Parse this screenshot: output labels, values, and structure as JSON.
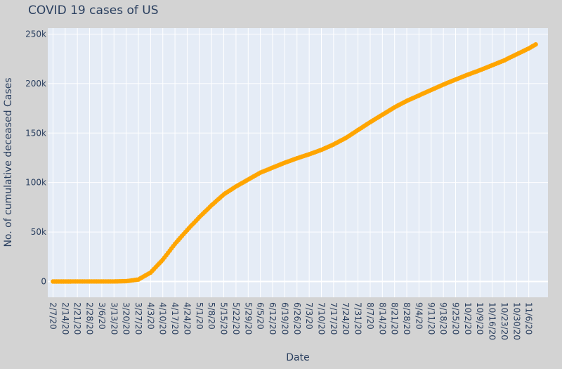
{
  "chart_data": {
    "type": "scatter",
    "mode": "lines+markers",
    "title": "COVID 19 cases of US",
    "xlabel": "Date",
    "ylabel": "No. of cumulative deceased Cases",
    "x_start": "2/7/20",
    "x_end": "11/10/20",
    "xlim": [
      "2/4/20",
      "11/17/20"
    ],
    "ylim": [
      -16000,
      256000
    ],
    "y_ticks": [
      0,
      50000,
      100000,
      150000,
      200000,
      250000
    ],
    "y_tick_labels": [
      "0",
      "50k",
      "100k",
      "150k",
      "200k",
      "250k"
    ],
    "x_tick_labels": [
      "2/7/20",
      "2/14/20",
      "2/21/20",
      "2/28/20",
      "3/6/20",
      "3/13/20",
      "3/20/20",
      "3/27/20",
      "4/3/20",
      "4/10/20",
      "4/17/20",
      "4/24/20",
      "5/1/20",
      "5/8/20",
      "5/15/20",
      "5/22/20",
      "5/29/20",
      "6/5/20",
      "6/12/20",
      "6/19/20",
      "6/26/20",
      "7/3/20",
      "7/10/20",
      "7/17/20",
      "7/24/20",
      "7/31/20",
      "8/7/20",
      "8/14/20",
      "8/21/20",
      "8/28/20",
      "9/4/20",
      "9/11/20",
      "9/18/20",
      "9/25/20",
      "10/2/20",
      "10/9/20",
      "10/16/20",
      "10/23/20",
      "10/30/20",
      "11/6/20"
    ],
    "key_points": [
      {
        "x": "2/7/20",
        "y": 0
      },
      {
        "x": "3/13/20",
        "y": 50
      },
      {
        "x": "3/20/20",
        "y": 300
      },
      {
        "x": "3/27/20",
        "y": 2000
      },
      {
        "x": "4/3/20",
        "y": 9000
      },
      {
        "x": "4/10/20",
        "y": 22000
      },
      {
        "x": "4/17/20",
        "y": 38000
      },
      {
        "x": "4/24/20",
        "y": 52000
      },
      {
        "x": "5/1/20",
        "y": 65000
      },
      {
        "x": "5/8/20",
        "y": 77000
      },
      {
        "x": "5/15/20",
        "y": 88000
      },
      {
        "x": "5/22/20",
        "y": 96000
      },
      {
        "x": "5/29/20",
        "y": 103000
      },
      {
        "x": "6/5/20",
        "y": 110000
      },
      {
        "x": "6/12/20",
        "y": 115000
      },
      {
        "x": "6/19/20",
        "y": 120000
      },
      {
        "x": "6/26/20",
        "y": 124500
      },
      {
        "x": "7/3/20",
        "y": 128500
      },
      {
        "x": "7/10/20",
        "y": 133000
      },
      {
        "x": "7/17/20",
        "y": 138500
      },
      {
        "x": "7/24/20",
        "y": 145000
      },
      {
        "x": "7/31/20",
        "y": 153000
      },
      {
        "x": "8/7/20",
        "y": 161000
      },
      {
        "x": "8/14/20",
        "y": 168500
      },
      {
        "x": "8/21/20",
        "y": 176000
      },
      {
        "x": "8/28/20",
        "y": 182500
      },
      {
        "x": "9/4/20",
        "y": 188000
      },
      {
        "x": "9/11/20",
        "y": 193500
      },
      {
        "x": "9/18/20",
        "y": 199000
      },
      {
        "x": "9/25/20",
        "y": 204000
      },
      {
        "x": "10/2/20",
        "y": 209000
      },
      {
        "x": "10/9/20",
        "y": 213500
      },
      {
        "x": "10/16/20",
        "y": 218500
      },
      {
        "x": "10/23/20",
        "y": 223500
      },
      {
        "x": "10/30/20",
        "y": 229500
      },
      {
        "x": "11/6/20",
        "y": 235500
      },
      {
        "x": "11/10/20",
        "y": 239500
      }
    ],
    "series_color": "#ffa500",
    "plot_bg": "#e5ecf6",
    "paper_bg": "#d3d3d3",
    "grid": true
  }
}
